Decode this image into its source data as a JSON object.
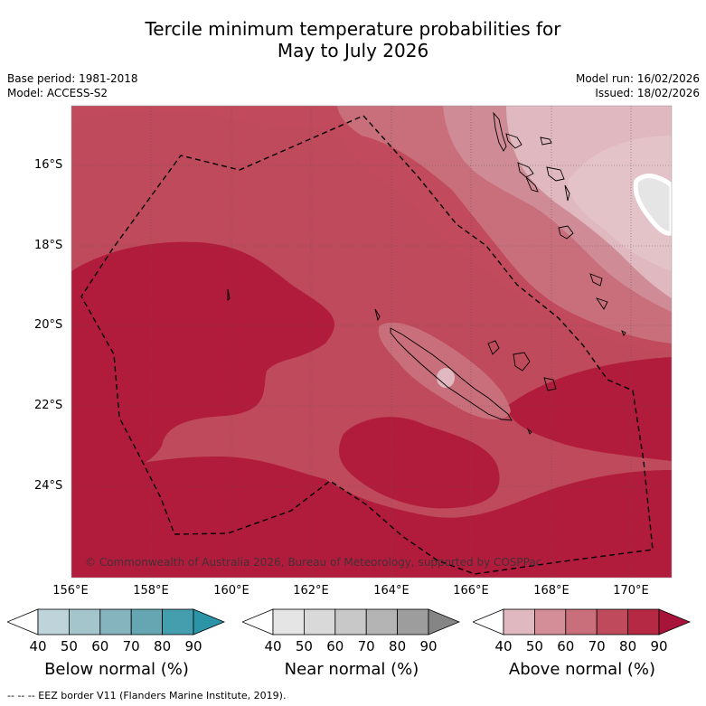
{
  "title_line1": "Tercile minimum temperature probabilities for",
  "title_line2": "May to July 2026",
  "base_period": "Base period: 1981-2018",
  "model": "Model: ACCESS-S2",
  "model_run": "Model run: 16/02/2026",
  "issued": "Issued: 18/02/2026",
  "latitude_labels": [
    "16°S",
    "18°S",
    "20°S",
    "22°S",
    "24°S"
  ],
  "longitude_labels": [
    "156°E",
    "158°E",
    "160°E",
    "162°E",
    "164°E",
    "166°E",
    "168°E",
    "170°E"
  ],
  "copyright": "© Commonwealth of Australia 2026, Bureau of Meteorology, supported by COSPPac",
  "colorbars": [
    {
      "label": "Below normal (%)",
      "ticks": [
        "40",
        "50",
        "60",
        "70",
        "80",
        "90"
      ],
      "colors": [
        "#ffffff",
        "#bfd4da",
        "#a4c5cb",
        "#86b4be",
        "#65a6b2",
        "#449ead",
        "#2b95a7"
      ]
    },
    {
      "label": "Near normal (%)",
      "ticks": [
        "40",
        "50",
        "60",
        "70",
        "80",
        "90"
      ],
      "colors": [
        "#ffffff",
        "#e5e5e5",
        "#d9d9d9",
        "#c8c8c8",
        "#b4b4b4",
        "#9d9d9d",
        "#858585"
      ]
    },
    {
      "label": "Above normal (%)",
      "ticks": [
        "40",
        "50",
        "60",
        "70",
        "80",
        "90"
      ],
      "colors": [
        "#ffffff",
        "#e0b8bf",
        "#d48e98",
        "#c96f7b",
        "#bf4a5c",
        "#b52944",
        "#a8133a"
      ]
    }
  ],
  "legend_footer": "-- -- -- EEZ border V11 (Flanders Marine Institute, 2019).",
  "map_colors": {
    "level_60": "#d08c96",
    "level_70": "#c96f7b",
    "level_80": "#bf4a5c",
    "level_90": "#b21c3c",
    "level_50": "#e0b8bf",
    "level_40": "#e5e5e5"
  }
}
